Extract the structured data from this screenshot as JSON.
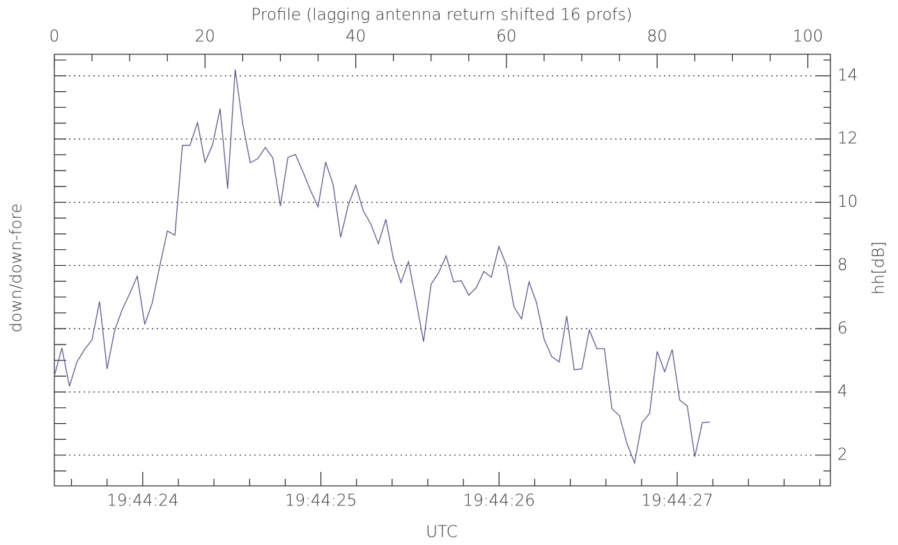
{
  "chart_data": {
    "type": "line",
    "title": "Profile (lagging antenna return shifted 16 profs)",
    "x_label": "UTC",
    "y_label": "down/down-fore",
    "y_label_right": "hh[dB]",
    "x": [
      0,
      1,
      2,
      3,
      4,
      5,
      6,
      7,
      8,
      9,
      10,
      11,
      12,
      13,
      14,
      15,
      16,
      17,
      18,
      19,
      20,
      21,
      22,
      23,
      24,
      25,
      26,
      27,
      28,
      29,
      30,
      31,
      32,
      33,
      34,
      35,
      36,
      37,
      38,
      39,
      40,
      41,
      42,
      43,
      44,
      45,
      46,
      47,
      48,
      49,
      50,
      51,
      52,
      53,
      54,
      55,
      56,
      57,
      58,
      59,
      60,
      61,
      62,
      63,
      64,
      65,
      66,
      67,
      68,
      69,
      70,
      71,
      72,
      73,
      74,
      75,
      76,
      77,
      78,
      79,
      80,
      81,
      82,
      83,
      84,
      85,
      86,
      87
    ],
    "series": [
      {
        "name": "hh",
        "color": "#5b5b98",
        "values": [
          4.51,
          5.39,
          4.18,
          4.95,
          5.34,
          5.65,
          6.86,
          4.73,
          5.94,
          6.6,
          7.11,
          7.66,
          6.14,
          6.82,
          7.99,
          9.09,
          8.96,
          11.8,
          11.8,
          12.52,
          11.27,
          11.82,
          12.96,
          10.43,
          14.2,
          12.48,
          11.25,
          11.38,
          11.73,
          11.4,
          9.88,
          11.42,
          11.51,
          10.96,
          10.37,
          9.86,
          11.27,
          10.56,
          8.89,
          9.9,
          10.54,
          9.73,
          9.31,
          8.69,
          9.46,
          8.21,
          7.46,
          8.12,
          6.89,
          5.59,
          7.41,
          7.77,
          8.3,
          7.48,
          7.52,
          7.06,
          7.3,
          7.81,
          7.63,
          8.6,
          8.01,
          6.69,
          6.31,
          7.48,
          6.82,
          5.67,
          5.12,
          4.95,
          6.4,
          4.7,
          4.73,
          5.96,
          5.37,
          5.37,
          3.47,
          3.25,
          2.37,
          1.75,
          3.03,
          3.32,
          5.28,
          4.64,
          5.34,
          3.74,
          3.56,
          1.95,
          3.03,
          3.05
        ]
      }
    ],
    "xlim": [
      0,
      103
    ],
    "xticks": [
      0,
      20,
      40,
      60,
      80,
      100
    ],
    "xminor_ticks": [
      5,
      10,
      15,
      25,
      30,
      35,
      45,
      50,
      55,
      65,
      70,
      75,
      85,
      90,
      95
    ],
    "x2lim": [
      23.504,
      27.86
    ],
    "x2ticks": [
      {
        "value": 24,
        "label": "19:44:24"
      },
      {
        "value": 25,
        "label": "19:44:25"
      },
      {
        "value": 26,
        "label": "19:44:26"
      },
      {
        "value": 27,
        "label": "19:44:27"
      }
    ],
    "x2minor_ticks": [
      23.6,
      23.8,
      24.2,
      24.4,
      24.6,
      24.8,
      25.2,
      25.4,
      25.6,
      25.8,
      26.2,
      26.4,
      26.6,
      26.8,
      27.2,
      27.4,
      27.6,
      27.8
    ],
    "ylim": [
      1.03,
      14.68
    ],
    "yticks": [
      2,
      4,
      6,
      8,
      10,
      12,
      14
    ],
    "yminor_ticks": [
      1.5,
      2.5,
      3,
      3.5,
      4.5,
      5,
      5.5,
      6.5,
      7,
      7.5,
      8.5,
      9,
      9.5,
      10.5,
      11,
      11.5,
      12.5,
      13,
      13.5,
      14.5
    ],
    "grid": true
  }
}
